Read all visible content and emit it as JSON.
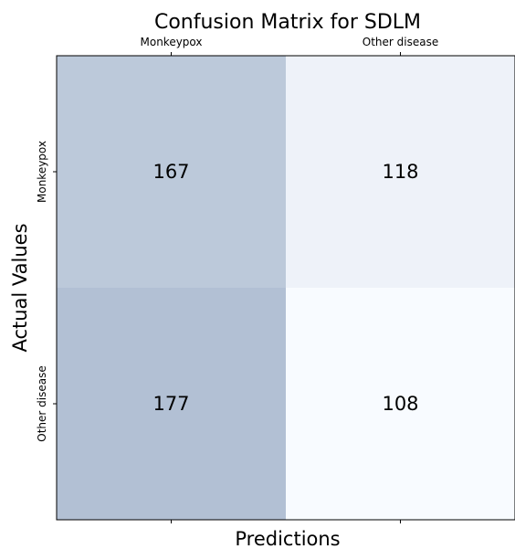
{
  "chart_data": {
    "type": "heatmap",
    "title": "Confusion Matrix for SDLM",
    "xlabel": "Predictions",
    "ylabel": "Actual Values",
    "x_categories": [
      "Monkeypox",
      "Other disease"
    ],
    "y_categories": [
      "Monkeypox",
      "Other disease"
    ],
    "x_tick_position": "top",
    "values": [
      [
        167,
        118
      ],
      [
        177,
        108
      ]
    ],
    "colormap": "Blues",
    "grid": false
  }
}
